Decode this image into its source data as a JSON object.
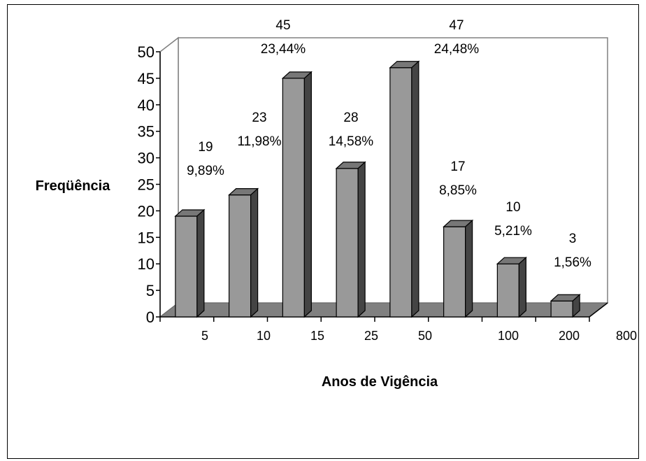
{
  "chart_data": {
    "type": "bar",
    "xlabel": "Anos de Vigência",
    "ylabel": "Freqüência",
    "ylim": [
      0,
      50
    ],
    "yticks": [
      0,
      5,
      10,
      15,
      20,
      25,
      30,
      35,
      40,
      45,
      50
    ],
    "categories": [
      "5",
      "10",
      "15",
      "25",
      "50",
      "100",
      "200",
      "800"
    ],
    "values": [
      19,
      23,
      45,
      28,
      47,
      17,
      10,
      3
    ],
    "percent_labels": [
      "9,89%",
      "11,98%",
      "23,44%",
      "14,58%",
      "24,48%",
      "8,85%",
      "5,21%",
      "1,56%"
    ],
    "bar_color": "#999999",
    "floor_color": "#808080",
    "grid": false,
    "legend": "none",
    "style": "3d-column"
  }
}
